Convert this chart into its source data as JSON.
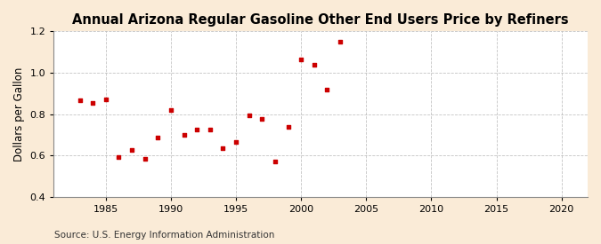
{
  "title": "Annual Arizona Regular Gasoline Other End Users Price by Refiners",
  "ylabel": "Dollars per Gallon",
  "source": "Source: U.S. Energy Information Administration",
  "fig_background_color": "#faebd7",
  "plot_background_color": "#ffffff",
  "marker_color": "#cc0000",
  "years": [
    1983,
    1984,
    1985,
    1986,
    1987,
    1988,
    1989,
    1990,
    1991,
    1992,
    1993,
    1994,
    1995,
    1996,
    1997,
    1998,
    1999,
    2000,
    2001,
    2002,
    2003
  ],
  "values": [
    0.868,
    0.854,
    0.872,
    0.592,
    0.625,
    0.583,
    0.685,
    0.819,
    0.7,
    0.725,
    0.725,
    0.635,
    0.665,
    0.795,
    0.775,
    0.572,
    0.74,
    1.065,
    1.038,
    0.917,
    1.148
  ],
  "xlim": [
    1981,
    2022
  ],
  "ylim": [
    0.4,
    1.2
  ],
  "xticks": [
    1985,
    1990,
    1995,
    2000,
    2005,
    2010,
    2015,
    2020
  ],
  "yticks": [
    0.4,
    0.6,
    0.8,
    1.0,
    1.2
  ],
  "grid_color": "#aaaaaa",
  "title_fontsize": 10.5,
  "label_fontsize": 8.5,
  "tick_fontsize": 8,
  "source_fontsize": 7.5
}
